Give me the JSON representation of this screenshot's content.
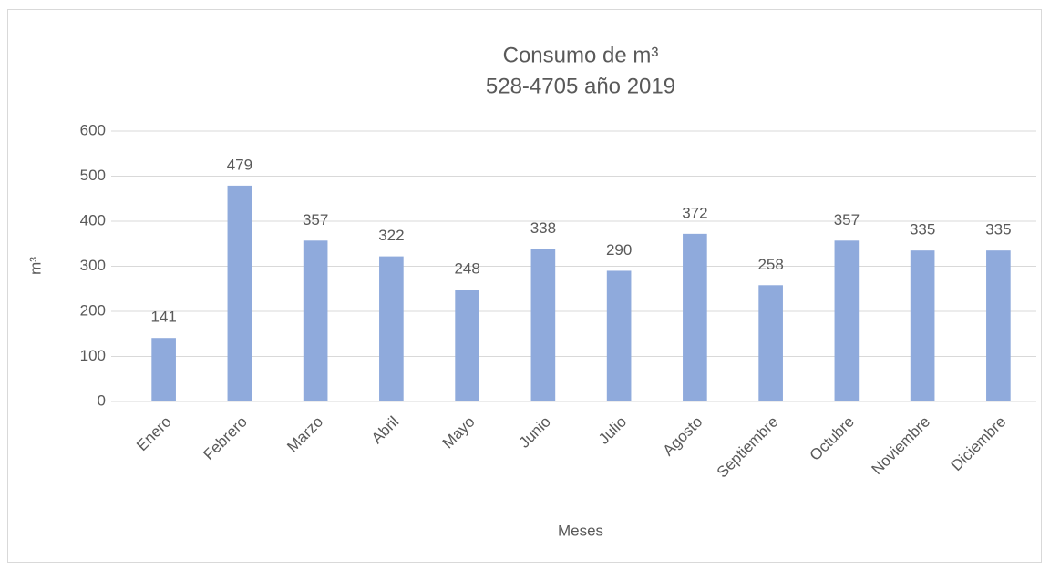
{
  "chart_data": {
    "type": "bar",
    "title": "Consumo de m³",
    "subtitle": "528-4705 año 2019",
    "x_label": "Meses",
    "y_label": "m³",
    "categories": [
      "Enero",
      "Febrero",
      "Marzo",
      "Abril",
      "Mayo",
      "Junio",
      "Julio",
      "Agosto",
      "Septiembre",
      "Octubre",
      "Noviembre",
      "Diciembre"
    ],
    "values": [
      141,
      479,
      357,
      322,
      248,
      338,
      290,
      372,
      258,
      357,
      335,
      335
    ],
    "color": "#8faadc",
    "ylim": [
      0,
      600
    ],
    "yticks": [
      0,
      100,
      200,
      300,
      400,
      500,
      600
    ],
    "grid": true
  }
}
